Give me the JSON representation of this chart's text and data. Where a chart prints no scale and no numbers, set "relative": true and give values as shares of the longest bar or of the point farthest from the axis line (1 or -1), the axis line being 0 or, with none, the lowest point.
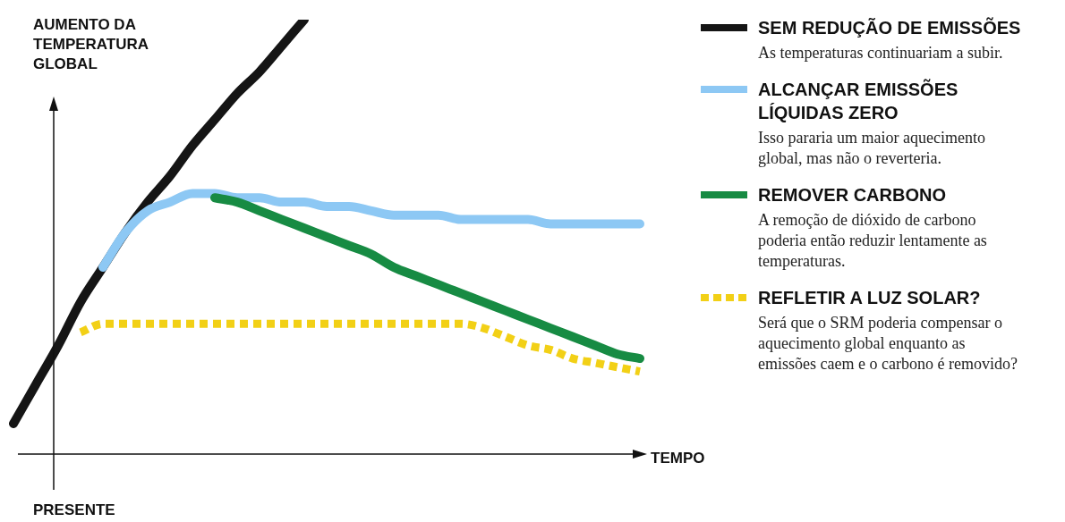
{
  "chart_data": {
    "type": "line",
    "relative": true,
    "ylabel": "AUMENTO DA TEMPERATURA GLOBAL",
    "xlabel": "TEMPO",
    "legend": "right",
    "marker": "none",
    "categories": [
      null,
      null,
      null,
      null,
      null,
      null,
      null,
      null,
      null,
      null,
      null,
      null,
      null,
      null,
      null,
      null,
      null,
      null,
      null,
      null,
      null,
      null,
      null,
      null,
      null,
      null,
      null,
      null,
      null
    ],
    "series": [
      {
        "name": "SEM REDUÇÃO DE EMISSÕES",
        "color": "#151515",
        "line_style": "solid",
        "values": [
          0.07,
          0.16,
          0.25,
          0.35,
          0.43,
          0.51,
          0.58,
          0.64,
          0.71,
          0.77,
          0.83,
          0.88,
          0.94,
          1.0,
          null,
          null,
          null,
          null,
          null,
          null,
          null,
          null,
          null,
          null,
          null,
          null,
          null,
          null,
          null
        ]
      },
      {
        "name": "ALCANÇAR EMISSÕES LÍQUIDAS ZERO",
        "color": "#8dc8f4",
        "line_style": "solid",
        "values": [
          null,
          null,
          null,
          null,
          0.43,
          0.51,
          0.56,
          0.58,
          0.6,
          0.6,
          0.59,
          0.59,
          0.58,
          0.58,
          0.57,
          0.57,
          0.56,
          0.55,
          0.55,
          0.55,
          0.54,
          0.54,
          0.54,
          0.54,
          0.53,
          0.53,
          0.53,
          0.53,
          0.53
        ]
      },
      {
        "name": "REMOVER CARBONO",
        "color": "#178b43",
        "line_style": "solid",
        "values": [
          null,
          null,
          null,
          null,
          null,
          null,
          null,
          null,
          null,
          0.59,
          0.58,
          0.56,
          0.54,
          0.52,
          0.5,
          0.48,
          0.46,
          0.43,
          0.41,
          0.39,
          0.37,
          0.35,
          0.33,
          0.31,
          0.29,
          0.27,
          0.25,
          0.23,
          0.22
        ]
      },
      {
        "name": "REFLETIR A LUZ SOLAR?",
        "color": "#f2d016",
        "line_style": "dashed",
        "values": [
          null,
          null,
          null,
          0.28,
          0.3,
          0.3,
          0.3,
          0.3,
          0.3,
          0.3,
          0.3,
          0.3,
          0.3,
          0.3,
          0.3,
          0.3,
          0.3,
          0.3,
          0.3,
          0.3,
          0.3,
          0.29,
          0.27,
          0.25,
          0.24,
          0.22,
          0.21,
          0.2,
          0.19
        ]
      }
    ],
    "annotations": [
      "As temperaturas continuariam a subir.",
      "Isso pararia um maior aquecimento global, mas não o reverteria.",
      "A remoção de dióxido de carbono poderia então reduzir lentamente as temperaturas.",
      "Será que o SRM poderia compensar o aquecimento global enquanto as emissões caem e o carbono é removido?",
      "PRESENTE"
    ]
  }
}
